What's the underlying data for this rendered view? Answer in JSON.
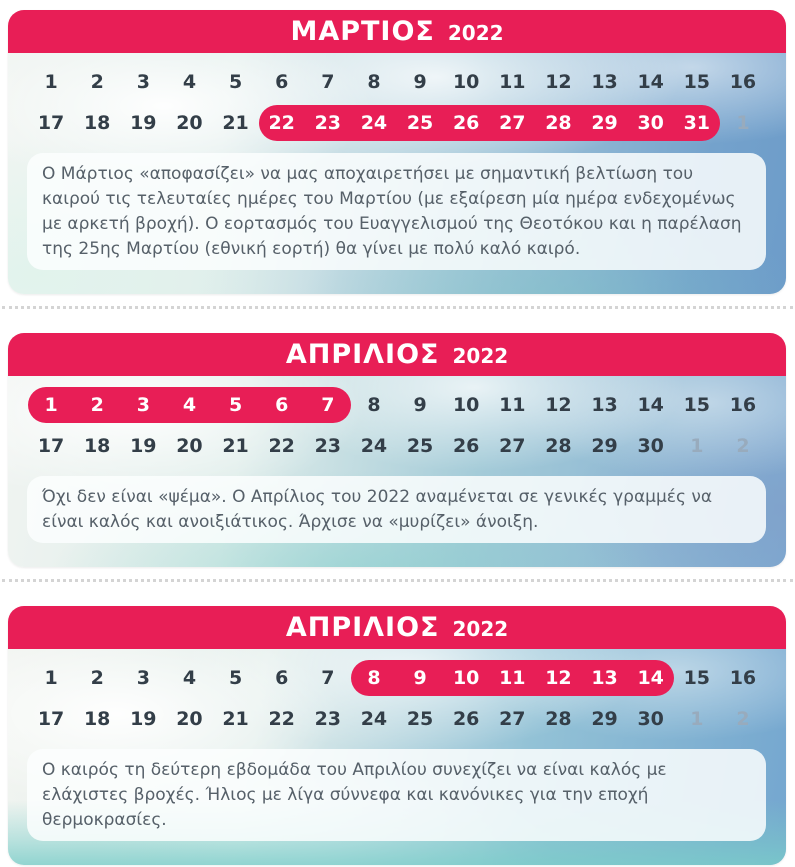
{
  "colors": {
    "accent_pink": "#e81e56",
    "day_text": "#333e48",
    "muted_day_text": "#98abbd",
    "note_text": "#566069",
    "header_text": "#ffffff"
  },
  "panels": [
    {
      "month": "ΜΑΡΤΙΟΣ",
      "year": "2022",
      "rows": [
        {
          "days": [
            "1",
            "2",
            "3",
            "4",
            "5",
            "6",
            "7",
            "8",
            "9",
            "10",
            "11",
            "12",
            "13",
            "14",
            "15",
            "16"
          ],
          "states": "nnnnnnnnnnnnnnnn"
        },
        {
          "days": [
            "17",
            "18",
            "19",
            "20",
            "21",
            "22",
            "23",
            "24",
            "25",
            "26",
            "27",
            "28",
            "29",
            "30",
            "31",
            "1"
          ],
          "states": "nnnnnhhhhhhhhhhm"
        }
      ],
      "text": "Ο Μάρτιος «αποφασίζει» να μας αποχαιρετήσει με σημαντική βελτίωση του καιρού τις τελευταίες ημέρες του Μαρτίου (με εξαίρεση μία ημέρα ενδεχομένως με αρκετή βροχή). Ο εορτασμός του Ευαγγελισμού της Θεοτόκου και η παρέλαση της 25ης Μαρτίου (εθνική εορτή) θα γίνει με πολύ καλό καιρό."
    },
    {
      "month": "ΑΠΡΙΛΙΟΣ",
      "year": "2022",
      "rows": [
        {
          "days": [
            "1",
            "2",
            "3",
            "4",
            "5",
            "6",
            "7",
            "8",
            "9",
            "10",
            "11",
            "12",
            "13",
            "14",
            "15",
            "16"
          ],
          "states": "hhhhhhhnnnnnnnnn"
        },
        {
          "days": [
            "17",
            "18",
            "19",
            "20",
            "21",
            "22",
            "23",
            "24",
            "25",
            "26",
            "27",
            "28",
            "29",
            "30",
            "1",
            "2"
          ],
          "states": "nnnnnnnnnnnnnnmm"
        }
      ],
      "text": "Όχι δεν είναι «ψέμα». Ο Απρίλιος του 2022 αναμένεται σε γενικές γραμμές να είναι καλός και ανοιξιάτικος. Άρχισε να «μυρίζει» άνοιξη."
    },
    {
      "month": "ΑΠΡΙΛΙΟΣ",
      "year": "2022",
      "rows": [
        {
          "days": [
            "1",
            "2",
            "3",
            "4",
            "5",
            "6",
            "7",
            "8",
            "9",
            "10",
            "11",
            "12",
            "13",
            "14",
            "15",
            "16"
          ],
          "states": "nnnnnnnhhhhhhhnn"
        },
        {
          "days": [
            "17",
            "18",
            "19",
            "20",
            "21",
            "22",
            "23",
            "24",
            "25",
            "26",
            "27",
            "28",
            "29",
            "30",
            "1",
            "2"
          ],
          "states": "nnnnnnnnnnnnnnmm"
        }
      ],
      "text": "Ο καιρός τη δεύτερη εβδομάδα του Απριλίου συνεχίζει να είναι καλός με ελάχιστες βροχές. Ήλιος με λίγα σύννεφα και κανόνικες για την εποχή θερμοκρασίες."
    }
  ]
}
